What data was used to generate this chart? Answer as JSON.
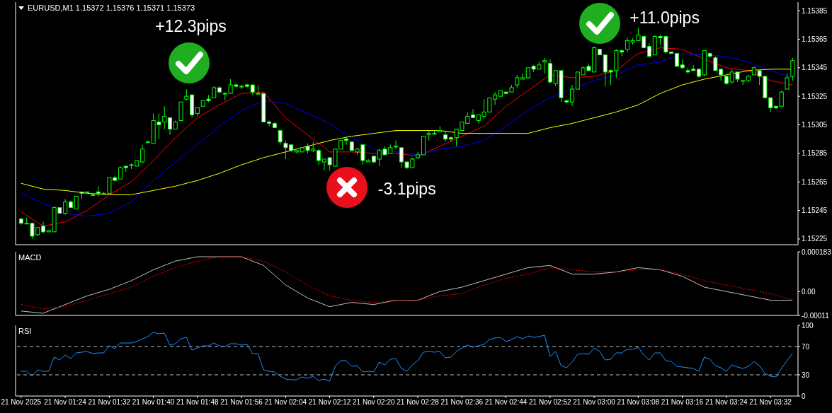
{
  "chart_data": [
    {
      "type": "candlestick",
      "title": "EURUSD,M1 1.15372 1.15376 1.15371 1.15373",
      "color": "#00ff00",
      "x": [
        "2025-11-21T01:16",
        "2025-11-21T01:17",
        "2025-11-21T01:18",
        "2025-11-21T01:19",
        "2025-11-21T01:20",
        "2025-11-21T01:21",
        "2025-11-21T01:22",
        "2025-11-21T01:23",
        "2025-11-21T01:24",
        "2025-11-21T01:25",
        "2025-11-21T01:26",
        "2025-11-21T01:27",
        "2025-11-21T01:28",
        "2025-11-21T01:29",
        "2025-11-21T01:30",
        "2025-11-21T01:31",
        "2025-11-21T01:32",
        "2025-11-21T01:33",
        "2025-11-21T01:34",
        "2025-11-21T01:35",
        "2025-11-21T01:36",
        "2025-11-21T01:37",
        "2025-11-21T01:38",
        "2025-11-21T01:39",
        "2025-11-21T01:40",
        "2025-11-21T01:41",
        "2025-11-21T01:42",
        "2025-11-21T01:43",
        "2025-11-21T01:44",
        "2025-11-21T01:45",
        "2025-11-21T01:46",
        "2025-11-21T01:47",
        "2025-11-21T01:48",
        "2025-11-21T01:49",
        "2025-11-21T01:50",
        "2025-11-21T01:51",
        "2025-11-21T01:52",
        "2025-11-21T01:53",
        "2025-11-21T01:54",
        "2025-11-21T01:55",
        "2025-11-21T01:56",
        "2025-11-21T01:57",
        "2025-11-21T01:58",
        "2025-11-21T01:59",
        "2025-11-21T02:00",
        "2025-11-21T02:01",
        "2025-11-21T02:02",
        "2025-11-21T02:03",
        "2025-11-21T02:04",
        "2025-11-21T02:05",
        "2025-11-21T02:06",
        "2025-11-21T02:07",
        "2025-11-21T02:08",
        "2025-11-21T02:09",
        "2025-11-21T02:10",
        "2025-11-21T02:11",
        "2025-11-21T02:12",
        "2025-11-21T02:13",
        "2025-11-21T02:14",
        "2025-11-21T02:15",
        "2025-11-21T02:16",
        "2025-11-21T02:17",
        "2025-11-21T02:18",
        "2025-11-21T02:19",
        "2025-11-21T02:20",
        "2025-11-21T02:21",
        "2025-11-21T02:22",
        "2025-11-21T02:23",
        "2025-11-21T02:24",
        "2025-11-21T02:25",
        "2025-11-21T02:26",
        "2025-11-21T02:27",
        "2025-11-21T02:28",
        "2025-11-21T02:29",
        "2025-11-21T02:30",
        "2025-11-21T02:31",
        "2025-11-21T02:32",
        "2025-11-21T02:33",
        "2025-11-21T02:34",
        "2025-11-21T02:35",
        "2025-11-21T02:36",
        "2025-11-21T02:37",
        "2025-11-21T02:38",
        "2025-11-21T02:39",
        "2025-11-21T02:40",
        "2025-11-21T02:41",
        "2025-11-21T02:42",
        "2025-11-21T02:43",
        "2025-11-21T02:44",
        "2025-11-21T02:45",
        "2025-11-21T02:46",
        "2025-11-21T02:47",
        "2025-11-21T02:48",
        "2025-11-21T02:49",
        "2025-11-21T02:50",
        "2025-11-21T02:51",
        "2025-11-21T02:52",
        "2025-11-21T02:53",
        "2025-11-21T02:54",
        "2025-11-21T02:55",
        "2025-11-21T02:56",
        "2025-11-21T02:57",
        "2025-11-21T02:58",
        "2025-11-21T02:59",
        "2025-11-21T03:00",
        "2025-11-21T03:01",
        "2025-11-21T03:02",
        "2025-11-21T03:03",
        "2025-11-21T03:04",
        "2025-11-21T03:05",
        "2025-11-21T03:06",
        "2025-11-21T03:07",
        "2025-11-21T03:08",
        "2025-11-21T03:09",
        "2025-11-21T03:10",
        "2025-11-21T03:11",
        "2025-11-21T03:12",
        "2025-11-21T03:13",
        "2025-11-21T03:14",
        "2025-11-21T03:15",
        "2025-11-21T03:16",
        "2025-11-21T03:17",
        "2025-11-21T03:18",
        "2025-11-21T03:19",
        "2025-11-21T03:20",
        "2025-11-21T03:21",
        "2025-11-21T03:22",
        "2025-11-21T03:23",
        "2025-11-21T03:24",
        "2025-11-21T03:25",
        "2025-11-21T03:26",
        "2025-11-21T03:27",
        "2025-11-21T03:28",
        "2025-11-21T03:29",
        "2025-11-21T03:30",
        "2025-11-21T03:31",
        "2025-11-21T03:32",
        "2025-11-21T03:33",
        "2025-11-21T03:34",
        "2025-11-21T03:35",
        "2025-11-21T03:36"
      ],
      "ohlc": [
        [
          1.15239,
          1.1524,
          1.15235,
          1.15236
        ],
        [
          1.15236,
          1.1524,
          1.15236,
          1.15236
        ],
        [
          1.15236,
          1.15236,
          1.15225,
          1.15227
        ],
        [
          1.15228,
          1.15233,
          1.15227,
          1.15233
        ],
        [
          1.15234,
          1.15237,
          1.15229,
          1.1523
        ],
        [
          1.1523,
          1.15231,
          1.1523,
          1.15231
        ],
        [
          1.1523,
          1.15248,
          1.1523,
          1.15247
        ],
        [
          1.15247,
          1.15247,
          1.15243,
          1.15243
        ],
        [
          1.15243,
          1.15253,
          1.15242,
          1.15251
        ],
        [
          1.15251,
          1.15252,
          1.15247,
          1.15247
        ],
        [
          1.15246,
          1.15255,
          1.15246,
          1.15255
        ],
        [
          1.15258,
          1.15258,
          1.15253,
          1.15257
        ],
        [
          1.15258,
          1.15258,
          1.15257,
          1.15258
        ],
        [
          1.15256,
          1.15257,
          1.15256,
          1.15256
        ],
        [
          1.15258,
          1.15262,
          1.15255,
          1.15257
        ],
        [
          1.15257,
          1.15258,
          1.15256,
          1.15257
        ],
        [
          1.15257,
          1.15268,
          1.15257,
          1.15268
        ],
        [
          1.15268,
          1.15269,
          1.15266,
          1.15266
        ],
        [
          1.15267,
          1.15276,
          1.15267,
          1.15275
        ],
        [
          1.15276,
          1.15276,
          1.15272,
          1.15275
        ],
        [
          1.15277,
          1.15278,
          1.15274,
          1.15277
        ],
        [
          1.15276,
          1.1528,
          1.15276,
          1.1528
        ],
        [
          1.15279,
          1.15291,
          1.15278,
          1.15288
        ],
        [
          1.15293,
          1.15294,
          1.15293,
          1.15293
        ],
        [
          1.15292,
          1.15313,
          1.15292,
          1.15308
        ],
        [
          1.15307,
          1.15313,
          1.15295,
          1.15305
        ],
        [
          1.15307,
          1.15318,
          1.15302,
          1.15311
        ],
        [
          1.1531,
          1.1531,
          1.15298,
          1.15302
        ],
        [
          1.15302,
          1.15308,
          1.15302,
          1.15307
        ],
        [
          1.15308,
          1.15321,
          1.15307,
          1.15321
        ],
        [
          1.15323,
          1.1533,
          1.15322,
          1.15325
        ],
        [
          1.15326,
          1.15326,
          1.1531,
          1.15312
        ],
        [
          1.15313,
          1.15317,
          1.15311,
          1.15317
        ],
        [
          1.15318,
          1.15322,
          1.15318,
          1.15322
        ],
        [
          1.15323,
          1.15326,
          1.15321,
          1.15322
        ],
        [
          1.15324,
          1.15332,
          1.15324,
          1.15331
        ],
        [
          1.15331,
          1.15332,
          1.15327,
          1.15328
        ],
        [
          1.15327,
          1.15328,
          1.15322,
          1.15327
        ],
        [
          1.15327,
          1.15337,
          1.15327,
          1.15333
        ],
        [
          1.15333,
          1.15334,
          1.15331,
          1.15332
        ],
        [
          1.15332,
          1.15333,
          1.1533,
          1.15332
        ],
        [
          1.15333,
          1.15334,
          1.15331,
          1.15332
        ],
        [
          1.15333,
          1.15333,
          1.15326,
          1.15328
        ],
        [
          1.15327,
          1.15333,
          1.15327,
          1.15327
        ],
        [
          1.15327,
          1.15327,
          1.15307,
          1.15307
        ],
        [
          1.15307,
          1.15308,
          1.15304,
          1.15306
        ],
        [
          1.15306,
          1.15307,
          1.15303,
          1.15303
        ],
        [
          1.15301,
          1.15301,
          1.15291,
          1.15293
        ],
        [
          1.15292,
          1.15294,
          1.15281,
          1.15289
        ],
        [
          1.15291,
          1.15291,
          1.15286,
          1.15287
        ],
        [
          1.15286,
          1.15288,
          1.15285,
          1.15287
        ],
        [
          1.15286,
          1.15289,
          1.15286,
          1.15289
        ],
        [
          1.1529,
          1.15292,
          1.15285,
          1.15287
        ],
        [
          1.15287,
          1.15293,
          1.15286,
          1.15288
        ],
        [
          1.15287,
          1.15288,
          1.15277,
          1.1528
        ],
        [
          1.15279,
          1.15281,
          1.15273,
          1.15281
        ],
        [
          1.15282,
          1.15282,
          1.15273,
          1.15277
        ],
        [
          1.15276,
          1.15288,
          1.15276,
          1.15288
        ],
        [
          1.15288,
          1.15294,
          1.15288,
          1.15294
        ],
        [
          1.15295,
          1.15297,
          1.15291,
          1.15294
        ],
        [
          1.15293,
          1.15293,
          1.15287,
          1.15287
        ],
        [
          1.15286,
          1.15289,
          1.15284,
          1.15288
        ],
        [
          1.15291,
          1.15291,
          1.15277,
          1.1528
        ],
        [
          1.15279,
          1.15281,
          1.15279,
          1.1528
        ],
        [
          1.15283,
          1.15283,
          1.15278,
          1.15279
        ],
        [
          1.15281,
          1.15288,
          1.15276,
          1.15287
        ],
        [
          1.15288,
          1.1529,
          1.15284,
          1.15284
        ],
        [
          1.15285,
          1.15291,
          1.15285,
          1.15289
        ],
        [
          1.1529,
          1.15294,
          1.15288,
          1.1529
        ],
        [
          1.15289,
          1.15289,
          1.15275,
          1.15279
        ],
        [
          1.15279,
          1.15279,
          1.15274,
          1.15275
        ],
        [
          1.15275,
          1.15282,
          1.15275,
          1.15281
        ],
        [
          1.15282,
          1.15286,
          1.15281,
          1.15284
        ],
        [
          1.15284,
          1.15297,
          1.15284,
          1.15297
        ],
        [
          1.15298,
          1.15301,
          1.15294,
          1.15299
        ],
        [
          1.15299,
          1.15301,
          1.15298,
          1.15299
        ],
        [
          1.153,
          1.15304,
          1.153,
          1.15301
        ],
        [
          1.15298,
          1.15301,
          1.15293,
          1.15295
        ],
        [
          1.15296,
          1.15297,
          1.15293,
          1.15295
        ],
        [
          1.15296,
          1.15302,
          1.1529,
          1.15302
        ],
        [
          1.15301,
          1.15307,
          1.15301,
          1.15307
        ],
        [
          1.15306,
          1.15314,
          1.15306,
          1.15311
        ],
        [
          1.15312,
          1.15316,
          1.1531,
          1.1531
        ],
        [
          1.15308,
          1.15312,
          1.15306,
          1.15312
        ],
        [
          1.15311,
          1.15323,
          1.15309,
          1.15314
        ],
        [
          1.15314,
          1.15324,
          1.15314,
          1.15324
        ],
        [
          1.15323,
          1.15328,
          1.15319,
          1.15326
        ],
        [
          1.15325,
          1.15329,
          1.15325,
          1.15329
        ],
        [
          1.15328,
          1.15328,
          1.15327,
          1.15327
        ],
        [
          1.15328,
          1.15333,
          1.15328,
          1.15331
        ],
        [
          1.15333,
          1.1534,
          1.15331,
          1.15338
        ],
        [
          1.15337,
          1.15341,
          1.15337,
          1.15338
        ],
        [
          1.15338,
          1.15345,
          1.15337,
          1.15345
        ],
        [
          1.15346,
          1.15347,
          1.15342,
          1.15344
        ],
        [
          1.15344,
          1.15349,
          1.15344,
          1.15347
        ],
        [
          1.15349,
          1.15352,
          1.15341,
          1.1535
        ],
        [
          1.15348,
          1.15351,
          1.15334,
          1.15335
        ],
        [
          1.15334,
          1.15343,
          1.15332,
          1.15343
        ],
        [
          1.15343,
          1.15343,
          1.15321,
          1.15324
        ],
        [
          1.15322,
          1.15322,
          1.1532,
          1.15321
        ],
        [
          1.15321,
          1.15333,
          1.15318,
          1.1533
        ],
        [
          1.1533,
          1.15342,
          1.1533,
          1.15342
        ],
        [
          1.1534,
          1.15346,
          1.1534,
          1.15345
        ],
        [
          1.15346,
          1.15348,
          1.15343,
          1.15343
        ],
        [
          1.15342,
          1.1536,
          1.15342,
          1.15359
        ],
        [
          1.15358,
          1.15358,
          1.15354,
          1.15354
        ],
        [
          1.15354,
          1.15354,
          1.15332,
          1.15342
        ],
        [
          1.15343,
          1.15344,
          1.15333,
          1.15342
        ],
        [
          1.15343,
          1.15358,
          1.15338,
          1.15357
        ],
        [
          1.15357,
          1.15358,
          1.15353,
          1.15356
        ],
        [
          1.15358,
          1.15366,
          1.15356,
          1.15364
        ],
        [
          1.15363,
          1.15366,
          1.15361,
          1.15364
        ],
        [
          1.15364,
          1.15373,
          1.15364,
          1.15368
        ],
        [
          1.15367,
          1.15367,
          1.15359,
          1.15359
        ],
        [
          1.1536,
          1.15362,
          1.15352,
          1.15353
        ],
        [
          1.15354,
          1.15368,
          1.15354,
          1.15367
        ],
        [
          1.15367,
          1.15368,
          1.15361,
          1.15366
        ],
        [
          1.15367,
          1.15367,
          1.15355,
          1.15356
        ],
        [
          1.15356,
          1.15356,
          1.15355,
          1.15355
        ],
        [
          1.15355,
          1.15355,
          1.15346,
          1.15346
        ],
        [
          1.15347,
          1.15351,
          1.15344,
          1.15345
        ],
        [
          1.15343,
          1.15345,
          1.15341,
          1.15342
        ],
        [
          1.15344,
          1.15347,
          1.15343,
          1.15343
        ],
        [
          1.15344,
          1.15344,
          1.15338,
          1.15339
        ],
        [
          1.1534,
          1.15357,
          1.15339,
          1.15357
        ],
        [
          1.15355,
          1.15356,
          1.15352,
          1.15353
        ],
        [
          1.15352,
          1.15353,
          1.15343,
          1.15343
        ],
        [
          1.15344,
          1.15344,
          1.15336,
          1.1534
        ],
        [
          1.15339,
          1.15339,
          1.15333,
          1.15334
        ],
        [
          1.15335,
          1.15344,
          1.15334,
          1.15342
        ],
        [
          1.15342,
          1.15342,
          1.15335,
          1.15337
        ],
        [
          1.15336,
          1.15336,
          1.15333,
          1.15336
        ],
        [
          1.15336,
          1.1534,
          1.15335,
          1.15339
        ],
        [
          1.1534,
          1.15346,
          1.1534,
          1.15345
        ],
        [
          1.15343,
          1.15344,
          1.15333,
          1.15339
        ],
        [
          1.15339,
          1.15339,
          1.15324,
          1.15324
        ],
        [
          1.15324,
          1.15324,
          1.15314,
          1.15317
        ],
        [
          1.15318,
          1.15318,
          1.15316,
          1.15317
        ],
        [
          1.15318,
          1.15329,
          1.15318,
          1.15328
        ],
        [
          1.1533,
          1.15341,
          1.1533,
          1.15338
        ],
        [
          1.15339,
          1.15352,
          1.15336,
          1.1535
        ]
      ],
      "colors": [
        "#ffffff",
        "#00ff00",
        "#ffffff",
        "#00ff00",
        "#ffffff",
        "#00ff00",
        "#00ff00",
        "#ffffff",
        "#00ff00",
        "#ffffff",
        "#00ff00",
        "#ffffff",
        "#00ff00",
        "#00ff00",
        "#ffffff",
        "#00ff00",
        "#00ff00",
        "#ffffff",
        "#00ff00",
        "#ffffff",
        "#00ff00",
        "#00ff00",
        "#00ff00",
        "#00ff00",
        "#00ff00",
        "#ffffff",
        "#00ff00",
        "#ffffff",
        "#00ff00",
        "#00ff00",
        "#00ff00",
        "#ffffff",
        "#00ff00",
        "#00ff00",
        "#ffffff",
        "#00ff00",
        "#ffffff",
        "#00ff00",
        "#00ff00",
        "#ffffff",
        "#00ff00",
        "#ffffff",
        "#ffffff",
        "#00ff00",
        "#ffffff",
        "#ffffff",
        "#ffffff",
        "#ffffff",
        "#ffffff",
        "#ffffff",
        "#00ff00",
        "#00ff00",
        "#ffffff",
        "#00ff00",
        "#ffffff",
        "#00ff00",
        "#ffffff",
        "#00ff00",
        "#00ff00",
        "#ffffff",
        "#ffffff",
        "#00ff00",
        "#ffffff",
        "#00ff00",
        "#ffffff",
        "#00ff00",
        "#ffffff",
        "#00ff00",
        "#00ff00",
        "#ffffff",
        "#ffffff",
        "#00ff00",
        "#00ff00",
        "#00ff00",
        "#00ff00",
        "#00ff00",
        "#00ff00",
        "#ffffff",
        "#ffffff",
        "#00ff00",
        "#00ff00",
        "#00ff00",
        "#ffffff",
        "#00ff00",
        "#00ff00",
        "#00ff00",
        "#00ff00",
        "#00ff00",
        "#ffffff",
        "#00ff00",
        "#00ff00",
        "#00ff00",
        "#00ff00",
        "#ffffff",
        "#00ff00",
        "#00ff00",
        "#ffffff",
        "#00ff00",
        "#ffffff",
        "#ffffff",
        "#00ff00",
        "#00ff00",
        "#00ff00",
        "#ffffff",
        "#00ff00",
        "#ffffff",
        "#ffffff",
        "#ffffff",
        "#00ff00",
        "#ffffff",
        "#00ff00",
        "#00ff00",
        "#00ff00",
        "#ffffff",
        "#ffffff",
        "#00ff00",
        "#ffffff",
        "#ffffff",
        "#ffffff",
        "#ffffff",
        "#ffffff",
        "#ffffff",
        "#ffffff",
        "#ffffff",
        "#00ff00",
        "#ffffff",
        "#ffffff",
        "#ffffff",
        "#ffffff",
        "#00ff00",
        "#ffffff",
        "#00ff00",
        "#00ff00",
        "#00ff00",
        "#ffffff",
        "#ffffff",
        "#ffffff",
        "#ffffff",
        "#00ff00",
        "#00ff00",
        "#00ff00"
      ],
      "series": [
        {
          "type": "line",
          "color": "#ff0000",
          "x": [
            "2025-11-21T01:16",
            "2025-11-21T01:20",
            "2025-11-21T01:24",
            "2025-11-21T01:28",
            "2025-11-21T01:32",
            "2025-11-21T01:36",
            "2025-11-21T01:40",
            "2025-11-21T01:44",
            "2025-11-21T01:48",
            "2025-11-21T01:52",
            "2025-11-21T01:56",
            "2025-11-21T02:00",
            "2025-11-21T02:04",
            "2025-11-21T02:08",
            "2025-11-21T02:12",
            "2025-11-21T02:16",
            "2025-11-21T02:20",
            "2025-11-21T02:24",
            "2025-11-21T02:28",
            "2025-11-21T02:32",
            "2025-11-21T02:36",
            "2025-11-21T02:40",
            "2025-11-21T02:44",
            "2025-11-21T02:48",
            "2025-11-21T02:52",
            "2025-11-21T02:56",
            "2025-11-21T03:00",
            "2025-11-21T03:04",
            "2025-11-21T03:08",
            "2025-11-21T03:12",
            "2025-11-21T03:16",
            "2025-11-21T03:20",
            "2025-11-21T03:24",
            "2025-11-21T03:28",
            "2025-11-21T03:32",
            "2025-11-21T03:36"
          ],
          "values": [
            1.15244,
            1.15234,
            1.15237,
            1.15245,
            1.15256,
            1.15265,
            1.1528,
            1.15296,
            1.1531,
            1.15319,
            1.15327,
            1.15328,
            1.1531,
            1.15298,
            1.15286,
            1.15286,
            1.15285,
            1.15285,
            1.15283,
            1.1529,
            1.15297,
            1.15304,
            1.15318,
            1.15329,
            1.1534,
            1.15338,
            1.15339,
            1.15343,
            1.15355,
            1.15359,
            1.15358,
            1.15351,
            1.15345,
            1.15343,
            1.15336,
            1.15333
          ]
        },
        {
          "type": "line",
          "color": "#0000ff",
          "x": [
            "2025-11-21T01:16",
            "2025-11-21T01:20",
            "2025-11-21T01:24",
            "2025-11-21T01:28",
            "2025-11-21T01:32",
            "2025-11-21T01:36",
            "2025-11-21T01:40",
            "2025-11-21T01:44",
            "2025-11-21T01:48",
            "2025-11-21T01:52",
            "2025-11-21T01:56",
            "2025-11-21T02:00",
            "2025-11-21T02:04",
            "2025-11-21T02:08",
            "2025-11-21T02:12",
            "2025-11-21T02:16",
            "2025-11-21T02:20",
            "2025-11-21T02:24",
            "2025-11-21T02:28",
            "2025-11-21T02:32",
            "2025-11-21T02:36",
            "2025-11-21T02:40",
            "2025-11-21T02:44",
            "2025-11-21T02:48",
            "2025-11-21T02:52",
            "2025-11-21T02:56",
            "2025-11-21T03:00",
            "2025-11-21T03:04",
            "2025-11-21T03:08",
            "2025-11-21T03:12",
            "2025-11-21T03:16",
            "2025-11-21T03:20",
            "2025-11-21T03:24",
            "2025-11-21T03:28",
            "2025-11-21T03:32",
            "2025-11-21T03:36"
          ],
          "values": [
            1.15257,
            1.1525,
            1.15243,
            1.15241,
            1.15243,
            1.15251,
            1.15266,
            1.15279,
            1.15291,
            1.15304,
            1.15315,
            1.15322,
            1.1532,
            1.15313,
            1.15306,
            1.15296,
            1.15288,
            1.15286,
            1.15284,
            1.15288,
            1.1529,
            1.15294,
            1.15304,
            1.15315,
            1.15324,
            1.1533,
            1.15336,
            1.1534,
            1.15347,
            1.15349,
            1.15355,
            1.15354,
            1.15353,
            1.15349,
            1.15343,
            1.15338
          ]
        },
        {
          "type": "line",
          "color": "#ffff00",
          "x": [
            "2025-11-21T01:16",
            "2025-11-21T01:20",
            "2025-11-21T01:24",
            "2025-11-21T01:28",
            "2025-11-21T01:32",
            "2025-11-21T01:36",
            "2025-11-21T01:40",
            "2025-11-21T01:44",
            "2025-11-21T01:48",
            "2025-11-21T01:52",
            "2025-11-21T01:56",
            "2025-11-21T02:00",
            "2025-11-21T02:04",
            "2025-11-21T02:08",
            "2025-11-21T02:12",
            "2025-11-21T02:16",
            "2025-11-21T02:20",
            "2025-11-21T02:24",
            "2025-11-21T02:28",
            "2025-11-21T02:32",
            "2025-11-21T02:36",
            "2025-11-21T02:40",
            "2025-11-21T02:44",
            "2025-11-21T02:48",
            "2025-11-21T02:52",
            "2025-11-21T02:56",
            "2025-11-21T03:00",
            "2025-11-21T03:04",
            "2025-11-21T03:08",
            "2025-11-21T03:12",
            "2025-11-21T03:16",
            "2025-11-21T03:20",
            "2025-11-21T03:24",
            "2025-11-21T03:28",
            "2025-11-21T03:32",
            "2025-11-21T03:36"
          ],
          "values": [
            1.15264,
            1.1526,
            1.15259,
            1.15257,
            1.15256,
            1.15256,
            1.15259,
            1.15262,
            1.15266,
            1.15271,
            1.15277,
            1.15282,
            1.15286,
            1.1529,
            1.15294,
            1.15297,
            1.15299,
            1.15301,
            1.15301,
            1.15301,
            1.15299,
            1.15299,
            1.15299,
            1.15299,
            1.15303,
            1.15306,
            1.1531,
            1.15314,
            1.15319,
            1.15327,
            1.15333,
            1.15337,
            1.1534,
            1.15343,
            1.15344,
            1.15344
          ]
        }
      ],
      "xlim": [
        "2025-11-21T01:15",
        "2025-11-21T03:37"
      ],
      "ylim": [
        1.15221,
        1.15391
      ],
      "yticks": [
        1.15225,
        1.15245,
        1.15265,
        1.15285,
        1.15305,
        1.15325,
        1.15345,
        1.15365,
        1.15385
      ],
      "tick_labels": "y",
      "annotations": [
        "+12.3pips",
        "-3.1pips",
        "+11.0pips"
      ]
    },
    {
      "type": "line",
      "title": "MACD",
      "x": [
        "2025-11-21T01:16",
        "2025-11-21T01:20",
        "2025-11-21T01:24",
        "2025-11-21T01:28",
        "2025-11-21T01:32",
        "2025-11-21T01:36",
        "2025-11-21T01:40",
        "2025-11-21T01:44",
        "2025-11-21T01:48",
        "2025-11-21T01:52",
        "2025-11-21T01:56",
        "2025-11-21T02:00",
        "2025-11-21T02:04",
        "2025-11-21T02:08",
        "2025-11-21T02:12",
        "2025-11-21T02:16",
        "2025-11-21T02:20",
        "2025-11-21T02:24",
        "2025-11-21T02:28",
        "2025-11-21T02:32",
        "2025-11-21T02:36",
        "2025-11-21T02:40",
        "2025-11-21T02:44",
        "2025-11-21T02:48",
        "2025-11-21T02:52",
        "2025-11-21T02:56",
        "2025-11-21T03:00",
        "2025-11-21T03:04",
        "2025-11-21T03:08",
        "2025-11-21T03:12",
        "2025-11-21T03:16",
        "2025-11-21T03:20",
        "2025-11-21T03:24",
        "2025-11-21T03:28",
        "2025-11-21T03:32",
        "2025-11-21T03:36"
      ],
      "series": [
        {
          "color": "#c0c0c0",
          "values": [
            -9e-05,
            -0.0001,
            -6e-05,
            -2e-05,
            1e-05,
            5e-05,
            0.0001,
            0.00014,
            0.00016,
            0.00016,
            0.00016,
            0.00012,
            3e-05,
            -3e-05,
            -7e-05,
            -5e-05,
            -6e-05,
            -4e-05,
            -4e-05,
            0,
            2e-05,
            5e-05,
            8e-05,
            0.00011,
            0.00012,
            8e-05,
            8e-05,
            9e-05,
            0.00011,
            0.0001,
            7e-05,
            2e-05,
            0,
            -2e-05,
            -4e-05,
            -4e-05
          ]
        },
        {
          "color": "#ff0000",
          "line_style": "dotted",
          "values": [
            -6e-05,
            -8e-05,
            -7e-05,
            -4e-05,
            -1e-05,
            2e-05,
            7e-05,
            0.00011,
            0.00014,
            0.00016,
            0.00016,
            0.00014,
            9e-05,
            3e-05,
            -2e-05,
            -4e-05,
            -5e-05,
            -4e-05,
            -4e-05,
            -2e-05,
            -1e-05,
            3e-05,
            6e-05,
            8e-05,
            0.00011,
            0.0001,
            9e-05,
            9e-05,
            0.0001,
            0.0001,
            8e-05,
            5e-05,
            3e-05,
            1e-05,
            -1e-05,
            -4e-05
          ]
        }
      ],
      "xlim": [
        "2025-11-21T01:15",
        "2025-11-21T03:37"
      ],
      "ylim": [
        -0.00011,
        0.000183
      ],
      "yticks": [
        {
          "value": -0.00011,
          "label": "-0.00011"
        },
        {
          "value": 0,
          "label": "0.00"
        },
        {
          "value": 0.000183,
          "label": "0.000183"
        }
      ],
      "tick_labels": "y"
    },
    {
      "type": "line",
      "title": "RSI",
      "x": [
        "2025-11-21T01:16",
        "2025-11-21T01:17",
        "2025-11-21T01:18",
        "2025-11-21T01:19",
        "2025-11-21T01:20",
        "2025-11-21T01:21",
        "2025-11-21T01:22",
        "2025-11-21T01:23",
        "2025-11-21T01:24",
        "2025-11-21T01:25",
        "2025-11-21T01:26",
        "2025-11-21T01:27",
        "2025-11-21T01:28",
        "2025-11-21T01:29",
        "2025-11-21T01:30",
        "2025-11-21T01:31",
        "2025-11-21T01:32",
        "2025-11-21T01:33",
        "2025-11-21T01:34",
        "2025-11-21T01:35",
        "2025-11-21T01:36",
        "2025-11-21T01:37",
        "2025-11-21T01:38",
        "2025-11-21T01:39",
        "2025-11-21T01:40",
        "2025-11-21T01:41",
        "2025-11-21T01:42",
        "2025-11-21T01:43",
        "2025-11-21T01:44",
        "2025-11-21T01:45",
        "2025-11-21T01:46",
        "2025-11-21T01:47",
        "2025-11-21T01:48",
        "2025-11-21T01:49",
        "2025-11-21T01:50",
        "2025-11-21T01:51",
        "2025-11-21T01:52",
        "2025-11-21T01:53",
        "2025-11-21T01:54",
        "2025-11-21T01:55",
        "2025-11-21T01:56",
        "2025-11-21T01:57",
        "2025-11-21T01:58",
        "2025-11-21T01:59",
        "2025-11-21T02:00",
        "2025-11-21T02:01",
        "2025-11-21T02:02",
        "2025-11-21T02:03",
        "2025-11-21T02:04",
        "2025-11-21T02:05",
        "2025-11-21T02:06",
        "2025-11-21T02:07",
        "2025-11-21T02:08",
        "2025-11-21T02:09",
        "2025-11-21T02:10",
        "2025-11-21T02:11",
        "2025-11-21T02:12",
        "2025-11-21T02:13",
        "2025-11-21T02:14",
        "2025-11-21T02:15",
        "2025-11-21T02:16",
        "2025-11-21T02:17",
        "2025-11-21T02:18",
        "2025-11-21T02:19",
        "2025-11-21T02:20",
        "2025-11-21T02:21",
        "2025-11-21T02:22",
        "2025-11-21T02:23",
        "2025-11-21T02:24",
        "2025-11-21T02:25",
        "2025-11-21T02:26",
        "2025-11-21T02:27",
        "2025-11-21T02:28",
        "2025-11-21T02:29",
        "2025-11-21T02:30",
        "2025-11-21T02:31",
        "2025-11-21T02:32",
        "2025-11-21T02:33",
        "2025-11-21T02:34",
        "2025-11-21T02:35",
        "2025-11-21T02:36",
        "2025-11-21T02:37",
        "2025-11-21T02:38",
        "2025-11-21T02:39",
        "2025-11-21T02:40",
        "2025-11-21T02:41",
        "2025-11-21T02:42",
        "2025-11-21T02:43",
        "2025-11-21T02:44",
        "2025-11-21T02:45",
        "2025-11-21T02:46",
        "2025-11-21T02:47",
        "2025-11-21T02:48",
        "2025-11-21T02:49",
        "2025-11-21T02:50",
        "2025-11-21T02:51",
        "2025-11-21T02:52",
        "2025-11-21T02:53",
        "2025-11-21T02:54",
        "2025-11-21T02:55",
        "2025-11-21T02:56",
        "2025-11-21T02:57",
        "2025-11-21T02:58",
        "2025-11-21T02:59",
        "2025-11-21T03:00",
        "2025-11-21T03:01",
        "2025-11-21T03:02",
        "2025-11-21T03:03",
        "2025-11-21T03:04",
        "2025-11-21T03:05",
        "2025-11-21T03:06",
        "2025-11-21T03:07",
        "2025-11-21T03:08",
        "2025-11-21T03:09",
        "2025-11-21T03:10",
        "2025-11-21T03:11",
        "2025-11-21T03:12",
        "2025-11-21T03:13",
        "2025-11-21T03:14",
        "2025-11-21T03:15",
        "2025-11-21T03:16",
        "2025-11-21T03:17",
        "2025-11-21T03:18",
        "2025-11-21T03:19",
        "2025-11-21T03:20",
        "2025-11-21T03:21",
        "2025-11-21T03:22",
        "2025-11-21T03:23",
        "2025-11-21T03:24",
        "2025-11-21T03:25",
        "2025-11-21T03:26",
        "2025-11-21T03:27",
        "2025-11-21T03:28",
        "2025-11-21T03:29",
        "2025-11-21T03:30",
        "2025-11-21T03:31",
        "2025-11-21T03:32",
        "2025-11-21T03:33",
        "2025-11-21T03:34",
        "2025-11-21T03:35",
        "2025-11-21T03:36"
      ],
      "series": [
        {
          "color": "#1e90ff",
          "values": [
            35,
            35,
            28,
            37,
            35,
            35,
            55,
            51,
            58,
            53,
            61,
            62,
            63,
            60,
            61,
            61,
            71,
            67,
            75,
            75,
            75,
            77,
            81,
            84,
            90,
            88,
            89,
            72,
            74,
            81,
            83,
            65,
            68,
            71,
            71,
            75,
            71,
            70,
            74,
            74,
            72,
            73,
            60,
            60,
            37,
            35,
            34,
            28,
            24,
            23,
            23,
            27,
            25,
            28,
            22,
            24,
            21,
            42,
            50,
            50,
            42,
            43,
            34,
            35,
            34,
            48,
            44,
            52,
            53,
            39,
            35,
            44,
            50,
            62,
            63,
            62,
            63,
            54,
            55,
            63,
            68,
            72,
            69,
            71,
            73,
            80,
            82,
            83,
            77,
            80,
            84,
            81,
            85,
            83,
            84,
            86,
            56,
            63,
            43,
            40,
            48,
            59,
            60,
            59,
            68,
            63,
            51,
            52,
            61,
            61,
            66,
            66,
            69,
            58,
            51,
            61,
            61,
            50,
            49,
            42,
            41,
            40,
            39,
            35,
            55,
            52,
            43,
            40,
            35,
            44,
            41,
            39,
            42,
            49,
            43,
            32,
            28,
            27,
            39,
            50,
            60
          ]
        }
      ],
      "xlim": [
        "2025-11-21T01:15",
        "2025-11-21T03:37"
      ],
      "xticks": [
        {
          "value": "2025-11-21T01:16",
          "label": "21 Nov 2025"
        },
        {
          "value": "2025-11-21T01:24",
          "label": "21 Nov 01:24"
        },
        {
          "value": "2025-11-21T01:32",
          "label": "21 Nov 01:32"
        },
        {
          "value": "2025-11-21T01:40",
          "label": "21 Nov 01:40"
        },
        {
          "value": "2025-11-21T01:48",
          "label": "21 Nov 01:48"
        },
        {
          "value": "2025-11-21T01:56",
          "label": "21 Nov 01:56"
        },
        {
          "value": "2025-11-21T02:04",
          "label": "21 Nov 02:04"
        },
        {
          "value": "2025-11-21T02:12",
          "label": "21 Nov 02:12"
        },
        {
          "value": "2025-11-21T02:20",
          "label": "21 Nov 02:20"
        },
        {
          "value": "2025-11-21T02:28",
          "label": "21 Nov 02:28"
        },
        {
          "value": "2025-11-21T02:36",
          "label": "21 Nov 02:36"
        },
        {
          "value": "2025-11-21T02:44",
          "label": "21 Nov 02:44"
        },
        {
          "value": "2025-11-21T02:52",
          "label": "21 Nov 02:52"
        },
        {
          "value": "2025-11-21T03:00",
          "label": "21 Nov 03:00"
        },
        {
          "value": "2025-11-21T03:08",
          "label": "21 Nov 03:08"
        },
        {
          "value": "2025-11-21T03:16",
          "label": "21 Nov 03:16"
        },
        {
          "value": "2025-11-21T03:24",
          "label": "21 Nov 03:24"
        },
        {
          "value": "2025-11-21T03:32",
          "label": "21 Nov 03:32"
        }
      ],
      "ylim": [
        0,
        100
      ],
      "yticks": [
        0,
        30,
        70,
        100
      ],
      "ref_lines": [
        {
          "axis": "y",
          "value": 70,
          "color": "#c0c0c0",
          "line_style": "dashed"
        },
        {
          "axis": "y",
          "value": 30,
          "color": "#c0c0c0",
          "line_style": "dashed"
        }
      ]
    }
  ]
}
